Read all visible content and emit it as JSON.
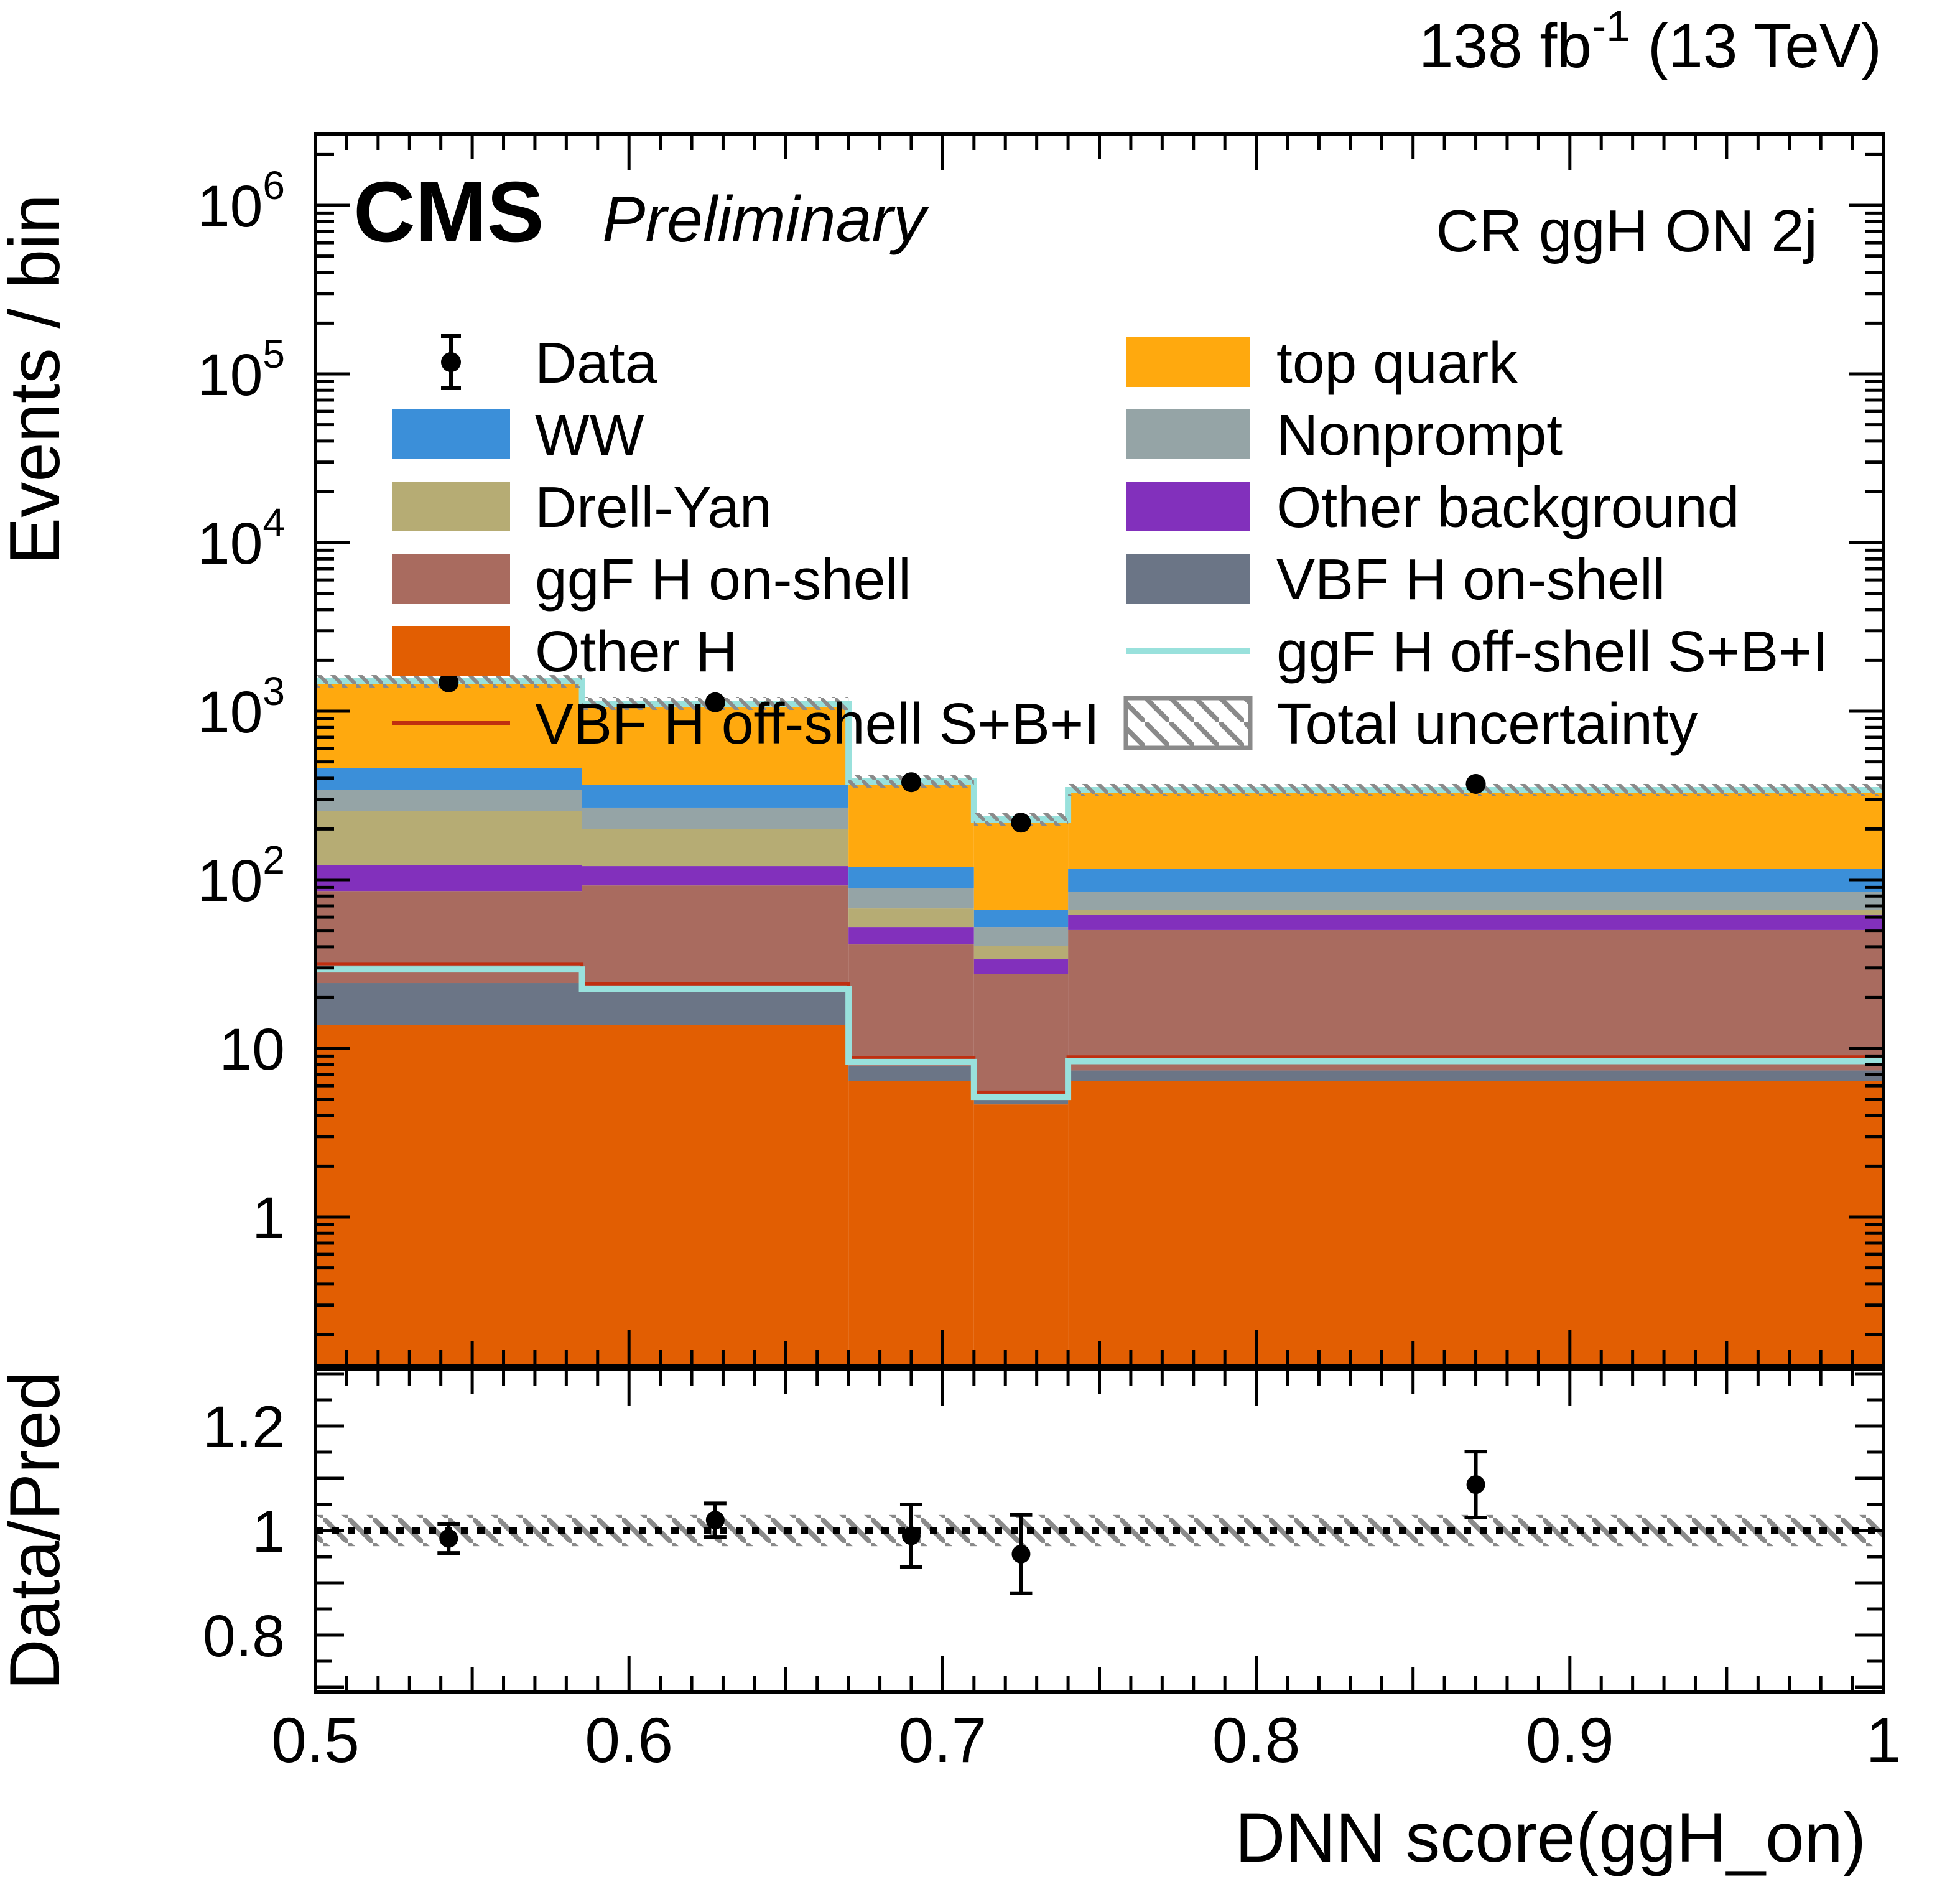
{
  "header": {
    "cms": "CMS",
    "preliminary": "Preliminary",
    "lumi_prefix": "138 fb",
    "lumi_sup": "-1",
    "lumi_suffix": " (13 TeV)",
    "region": "CR ggH ON 2j"
  },
  "colors": {
    "top_quark": "#FFA90E",
    "ww": "#3B8FD9",
    "nonprompt": "#95A4A6",
    "drell_yan": "#B6AC74",
    "other_background": "#8230BC",
    "ggf_h_on_shell": "#A96B5F",
    "vbf_h_on_shell": "#6B7586",
    "other_h": "#E25E02",
    "ggf_h_off_shell_line": "#99E1DC",
    "vbf_h_off_shell_line": "#BF2F10",
    "uncertainty_hatch": "#8A8A8A",
    "data_marker": "#000000"
  },
  "legend": {
    "left": [
      {
        "label": "Data",
        "type": "point",
        "color": "#000000"
      },
      {
        "label": "WW",
        "type": "fill",
        "color": "#3B8FD9"
      },
      {
        "label": "Drell-Yan",
        "type": "fill",
        "color": "#B6AC74"
      },
      {
        "label": "ggF H on-shell",
        "type": "fill",
        "color": "#A96B5F"
      },
      {
        "label": "Other H",
        "type": "fill",
        "color": "#E25E02"
      },
      {
        "label": "VBF H off-shell S+B+I",
        "type": "line",
        "color": "#BF2F10",
        "width": 6
      }
    ],
    "right": [
      {
        "label": "top quark",
        "type": "fill",
        "color": "#FFA90E"
      },
      {
        "label": "Nonprompt",
        "type": "fill",
        "color": "#95A4A6"
      },
      {
        "label": "Other background",
        "type": "fill",
        "color": "#8230BC"
      },
      {
        "label": "VBF H on-shell",
        "type": "fill",
        "color": "#6B7586"
      },
      {
        "label": "ggF H off-shell S+B+I",
        "type": "line",
        "color": "#99E1DC",
        "width": 10
      },
      {
        "label": "Total uncertainty",
        "type": "hatch",
        "color": "#8A8A8A"
      }
    ]
  },
  "chart_data": {
    "type": "stacked-step-histogram-with-ratio",
    "title": "CR ggH ON 2j",
    "x": {
      "label": "DNN score(ggH_on)",
      "min": 0.5,
      "max": 1.0,
      "bin_edges": [
        0.5,
        0.585,
        0.67,
        0.71,
        0.74,
        1.0
      ],
      "major_ticks": [
        0.5,
        0.6,
        0.7,
        0.8,
        0.9,
        1.0
      ],
      "major_tick_labels": [
        "0.5",
        "0.6",
        "0.7",
        "0.8",
        "0.9",
        "1"
      ]
    },
    "y_main": {
      "label": "Events / bin",
      "scale": "log",
      "min": 0.13,
      "max": 2700000,
      "labeled_decades": [
        1,
        10,
        100,
        1000,
        10000,
        100000,
        1000000
      ]
    },
    "y_ratio": {
      "label": "Data/Pred",
      "min": 0.69,
      "max": 1.31,
      "labeled_ticks": [
        0.8,
        1.0,
        1.2
      ]
    },
    "stack_series": [
      {
        "key": "other_h",
        "name": "Other H",
        "color": "#E25E02",
        "values": [
          13.7,
          13.7,
          6.4,
          4.65,
          6.4
        ]
      },
      {
        "key": "vbf_h_on_shell",
        "name": "VBF H on-shell",
        "color": "#6B7586",
        "values": [
          10.7,
          7.8,
          1.5,
          0.65,
          1.0
        ]
      },
      {
        "key": "ggf_h_on_shell",
        "name": "ggF H on-shell",
        "color": "#A96B5F",
        "values": [
          61.3,
          71.0,
          33.4,
          22.4,
          43.3
        ]
      },
      {
        "key": "other_background",
        "name": "Other background",
        "color": "#8230BC",
        "values": [
          36.8,
          28.0,
          11.1,
          6.0,
          11.0
        ]
      },
      {
        "key": "drell_yan",
        "name": "Drell-Yan",
        "color": "#B6AC74",
        "values": [
          132.5,
          80.0,
          15.2,
          6.9,
          4.8
        ]
      },
      {
        "key": "nonprompt",
        "name": "Nonprompt",
        "color": "#95A4A6",
        "values": [
          85.0,
          67.5,
          21.9,
          11.8,
          18.6
        ]
      },
      {
        "key": "ww",
        "name": "WW",
        "color": "#3B8FD9",
        "values": [
          118.0,
          96.0,
          29.9,
          14.1,
          30.5
        ]
      },
      {
        "key": "top_quark",
        "name": "top quark",
        "color": "#FFA90E",
        "values": [
          1045.0,
          743.0,
          263.6,
          161.5,
          224.4
        ]
      }
    ],
    "totals": [
      1503,
      1107,
      383,
      228,
      340
    ],
    "overlay_lines": [
      {
        "key": "vbf_off_shell",
        "name": "VBF H off-shell S+B+I",
        "color": "#BF2F10",
        "width": 5,
        "values": [
          31.8,
          24.2,
          8.8,
          5.5,
          8.9
        ]
      },
      {
        "key": "ggf_off_shell",
        "name": "ggF H off-shell S+B+I",
        "color": "#99E1DC",
        "width": 10,
        "values": [
          29.4,
          22.6,
          8.3,
          5.15,
          8.4
        ]
      },
      {
        "key": "ggf_off_shell_total",
        "name": "ggF H off-shell S+B+I (on total)",
        "color": "#99E1DC",
        "width": 10,
        "values": [
          1503,
          1107,
          383,
          228,
          340
        ]
      }
    ],
    "data_points": {
      "x": [
        0.5425,
        0.6275,
        0.69,
        0.725,
        0.87
      ],
      "y": [
        1480,
        1129,
        379,
        218,
        370
      ]
    },
    "ratio_points": {
      "x": [
        0.5425,
        0.6275,
        0.69,
        0.725,
        0.87
      ],
      "y": [
        0.985,
        1.02,
        0.99,
        0.955,
        1.088
      ],
      "err": [
        0.028,
        0.032,
        0.06,
        0.075,
        0.063
      ]
    },
    "ratio_uncertainty_band": 0.03,
    "legend_position": "top, two columns inside plot",
    "grid": false
  }
}
